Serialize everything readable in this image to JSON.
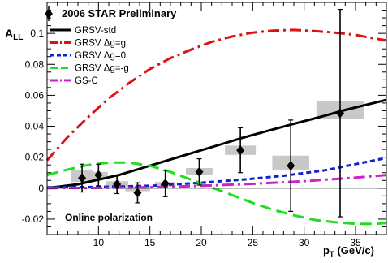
{
  "chart_data": {
    "type": "scatter",
    "title": "2006 STAR Preliminary",
    "ylabel": "A",
    "ylabel_sub": "LL",
    "xlabel_main": "p",
    "xlabel_sub": "T",
    "xlabel_unit": "(GeV/c)",
    "annotation": "Online polarization",
    "xlim": [
      5,
      38
    ],
    "ylim": [
      -0.03,
      0.12
    ],
    "x_ticks": [
      10,
      15,
      20,
      25,
      30,
      35
    ],
    "y_ticks": [
      -0.02,
      0,
      0.02,
      0.04,
      0.06,
      0.08,
      0.1
    ],
    "x_tick_labels": [
      "10",
      "15",
      "20",
      "25",
      "30",
      "35"
    ],
    "y_tick_labels": [
      "-0.02",
      "0",
      "0.02",
      "0.04",
      "0.06",
      "0.08",
      "0.1"
    ],
    "grid": false,
    "legend_position": "top-left",
    "data_legend_label": "2006 STAR Preliminary",
    "points": [
      {
        "x": 8.4,
        "y": 0.0065,
        "err": 0.009,
        "sys_halfwidth": 1.1,
        "sys_low": 0.004,
        "sys_high": 0.012
      },
      {
        "x": 10.0,
        "y": 0.0085,
        "err": 0.007,
        "sys_halfwidth": 0.9,
        "sys_low": 0.0055,
        "sys_high": 0.0105
      },
      {
        "x": 11.8,
        "y": 0.0025,
        "err": 0.006,
        "sys_halfwidth": 1.1,
        "sys_low": 0.0,
        "sys_high": 0.0045
      },
      {
        "x": 13.8,
        "y": -0.003,
        "err": 0.0065,
        "sys_halfwidth": 1.2,
        "sys_low": -0.002,
        "sys_high": 0.0015
      },
      {
        "x": 16.5,
        "y": 0.003,
        "err": 0.0085,
        "sys_halfwidth": 1.0,
        "sys_low": 0.001,
        "sys_high": 0.004
      },
      {
        "x": 19.8,
        "y": 0.0105,
        "err": 0.0085,
        "sys_halfwidth": 1.3,
        "sys_low": 0.0085,
        "sys_high": 0.013
      },
      {
        "x": 23.8,
        "y": 0.0245,
        "err": 0.0145,
        "sys_halfwidth": 1.5,
        "sys_low": 0.0215,
        "sys_high": 0.0275
      },
      {
        "x": 28.7,
        "y": 0.0145,
        "err": 0.0295,
        "sys_halfwidth": 1.8,
        "sys_low": 0.012,
        "sys_high": 0.021
      },
      {
        "x": 33.5,
        "y": 0.0485,
        "err": 0.067,
        "sys_halfwidth": 2.3,
        "sys_low": 0.045,
        "sys_high": 0.056
      }
    ],
    "series": [
      {
        "name": "GRSV-std",
        "color": "#000000",
        "dash": "solid",
        "x": [
          5,
          8,
          10,
          12,
          14,
          16,
          18,
          20,
          22,
          24,
          26,
          28,
          30,
          32,
          34,
          36,
          38
        ],
        "y": [
          0.0,
          0.0025,
          0.0055,
          0.0085,
          0.0125,
          0.0165,
          0.0205,
          0.0245,
          0.0285,
          0.0325,
          0.0362,
          0.0398,
          0.0433,
          0.0468,
          0.0505,
          0.0538,
          0.057
        ]
      },
      {
        "name": "GRSV Δg=g",
        "color": "#dd1111",
        "dash": "dashdot",
        "x": [
          5,
          7,
          9,
          11,
          13,
          15,
          17,
          19,
          21,
          23,
          25,
          27,
          29,
          31,
          33,
          35,
          37,
          38
        ],
        "y": [
          0.018,
          0.033,
          0.046,
          0.058,
          0.068,
          0.077,
          0.084,
          0.0895,
          0.0945,
          0.098,
          0.1005,
          0.1018,
          0.1022,
          0.1015,
          0.1005,
          0.099,
          0.0965,
          0.0955
        ]
      },
      {
        "name": "GRSV Δg=0",
        "color": "#1122cc",
        "dash": "dash",
        "x": [
          5,
          10,
          15,
          20,
          24,
          28,
          32,
          35,
          38
        ],
        "y": [
          0.0005,
          0.0008,
          0.0015,
          0.0035,
          0.0055,
          0.008,
          0.0115,
          0.0155,
          0.0195
        ]
      },
      {
        "name": "GRSV Δg=-g",
        "color": "#22dd22",
        "dash": "longdash",
        "x": [
          5,
          7,
          9,
          11,
          13,
          15,
          17,
          19,
          21,
          23,
          25,
          27,
          29,
          31,
          33,
          35,
          37,
          38
        ],
        "y": [
          0.0085,
          0.012,
          0.015,
          0.0165,
          0.0165,
          0.0145,
          0.0105,
          0.0055,
          0.0005,
          -0.0045,
          -0.0095,
          -0.014,
          -0.0175,
          -0.0205,
          -0.022,
          -0.023,
          -0.023,
          -0.0225
        ]
      },
      {
        "name": "GS-C",
        "color": "#cc22cc",
        "dash": "dashdot",
        "x": [
          5,
          10,
          15,
          20,
          25,
          30,
          35,
          38
        ],
        "y": [
          0.0,
          0.0002,
          0.0006,
          0.0015,
          0.0028,
          0.0045,
          0.0068,
          0.0085
        ]
      }
    ]
  }
}
